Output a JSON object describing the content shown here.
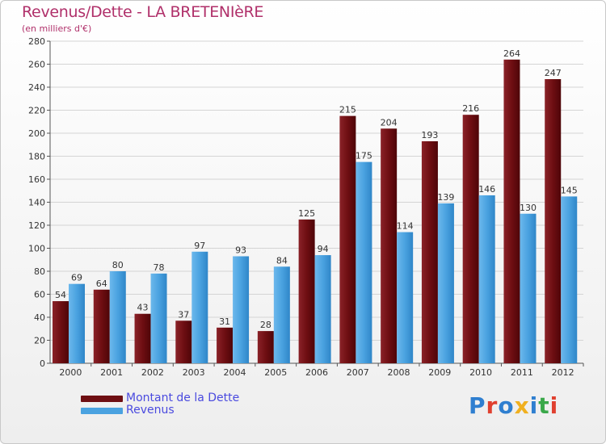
{
  "header": {
    "title": "Revenus/Dette - LA BRETENIèRE",
    "subtitle": "(en milliers d'€)"
  },
  "legend": {
    "debt_label": "Montant de la Dette",
    "revenue_label": "Revenus"
  },
  "logo": {
    "text": "Proxiti",
    "colors": [
      "#2f7fd0",
      "#e0402f",
      "#2f7fd0",
      "#f0b020",
      "#2f7fd0",
      "#3aa84a",
      "#e0402f"
    ]
  },
  "colors": {
    "debt": "#6e0e12",
    "revenue": "#4aa2e0",
    "title": "#b0306a",
    "legend_text": "#4a4adf"
  },
  "chart_data": {
    "type": "bar",
    "categories": [
      "2000",
      "2001",
      "2002",
      "2003",
      "2004",
      "2005",
      "2006",
      "2007",
      "2008",
      "2009",
      "2010",
      "2011",
      "2012"
    ],
    "series": [
      {
        "name": "Montant de la Dette",
        "values": [
          54,
          64,
          43,
          37,
          31,
          28,
          125,
          215,
          204,
          193,
          216,
          264,
          247
        ]
      },
      {
        "name": "Revenus",
        "values": [
          69,
          80,
          78,
          97,
          93,
          84,
          94,
          175,
          114,
          139,
          146,
          130,
          145
        ]
      }
    ],
    "title": "Revenus/Dette - LA BRETENIèRE",
    "ylim": [
      0,
      280
    ],
    "yticks": [
      0,
      20,
      40,
      60,
      80,
      100,
      120,
      140,
      160,
      180,
      200,
      220,
      240,
      260,
      280
    ],
    "grid": true,
    "legend_position": "bottom-left"
  }
}
